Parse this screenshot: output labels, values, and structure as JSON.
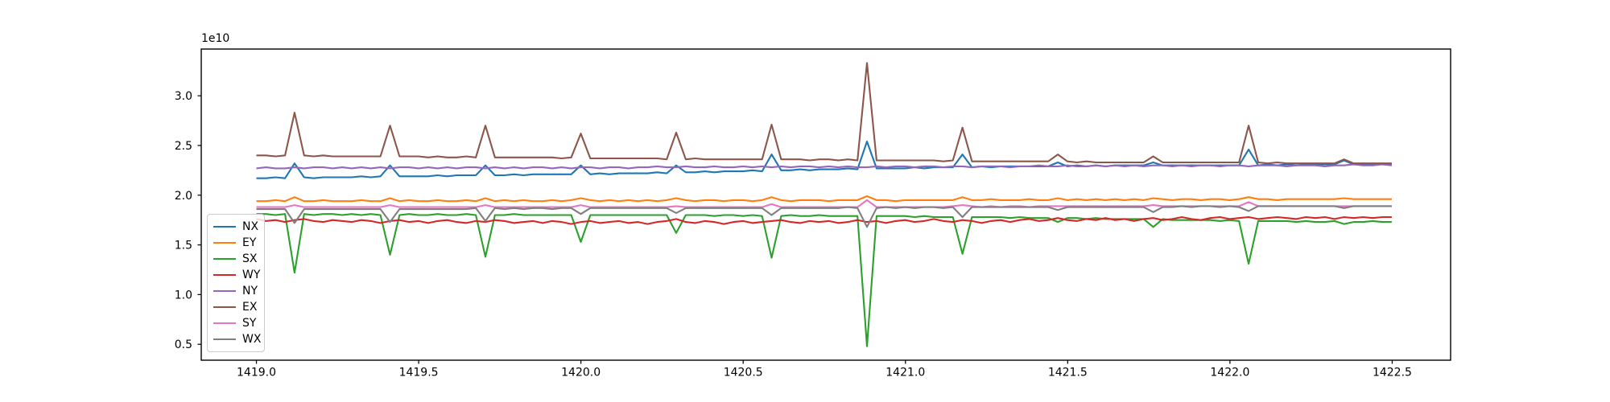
{
  "chart_data": {
    "type": "line",
    "title": "",
    "xlabel": "",
    "ylabel": "",
    "offset_text": "1e10",
    "grid": false,
    "legend_position": "lower left inside axes",
    "xlim": [
      1418.83,
      1422.68
    ],
    "ylim": [
      0.34,
      3.47
    ],
    "xticks": {
      "values": [
        1419.0,
        1419.5,
        1420.0,
        1420.5,
        1421.0,
        1421.5,
        1422.0,
        1422.5
      ],
      "labels": [
        "1419.0",
        "1419.5",
        "1420.0",
        "1420.5",
        "1421.0",
        "1421.5",
        "1422.0",
        "1422.5"
      ]
    },
    "yticks": {
      "values": [
        0.5,
        1.0,
        1.5,
        2.0,
        2.5,
        3.0
      ],
      "labels": [
        "0.5",
        "1.0",
        "1.5",
        "2.0",
        "2.5",
        "3.0"
      ]
    },
    "x_start": 1419.0,
    "x_step": 0.0294,
    "y_unit": "1e10",
    "series": [
      {
        "name": "NX",
        "color": "#1f77b4",
        "values": [
          2.17,
          2.17,
          2.18,
          2.17,
          2.32,
          2.18,
          2.17,
          2.18,
          2.18,
          2.18,
          2.18,
          2.19,
          2.18,
          2.19,
          2.3,
          2.19,
          2.19,
          2.19,
          2.19,
          2.2,
          2.19,
          2.2,
          2.2,
          2.2,
          2.3,
          2.2,
          2.2,
          2.21,
          2.2,
          2.21,
          2.21,
          2.21,
          2.21,
          2.21,
          2.3,
          2.21,
          2.22,
          2.21,
          2.22,
          2.22,
          2.22,
          2.22,
          2.23,
          2.22,
          2.3,
          2.23,
          2.23,
          2.24,
          2.23,
          2.24,
          2.24,
          2.24,
          2.25,
          2.24,
          2.41,
          2.25,
          2.25,
          2.26,
          2.25,
          2.26,
          2.26,
          2.26,
          2.27,
          2.26,
          2.54,
          2.27,
          2.27,
          2.27,
          2.27,
          2.28,
          2.27,
          2.28,
          2.28,
          2.28,
          2.41,
          2.28,
          2.29,
          2.28,
          2.29,
          2.29,
          2.29,
          2.29,
          2.29,
          2.29,
          2.33,
          2.29,
          2.3,
          2.29,
          2.3,
          2.29,
          2.3,
          2.3,
          2.3,
          2.3,
          2.33,
          2.3,
          2.3,
          2.3,
          2.3,
          2.3,
          2.3,
          2.3,
          2.3,
          2.3,
          2.46,
          2.3,
          2.31,
          2.3,
          2.31,
          2.3,
          2.31,
          2.31,
          2.31,
          2.31,
          2.35,
          2.31,
          2.31,
          2.31,
          2.31,
          2.31
        ]
      },
      {
        "name": "EY",
        "color": "#ff7f0e",
        "values": [
          1.94,
          1.94,
          1.95,
          1.94,
          1.98,
          1.94,
          1.94,
          1.95,
          1.94,
          1.94,
          1.94,
          1.95,
          1.94,
          1.94,
          1.97,
          1.94,
          1.95,
          1.94,
          1.94,
          1.95,
          1.94,
          1.94,
          1.95,
          1.94,
          1.97,
          1.94,
          1.95,
          1.94,
          1.95,
          1.94,
          1.94,
          1.95,
          1.94,
          1.95,
          1.97,
          1.95,
          1.94,
          1.95,
          1.94,
          1.95,
          1.94,
          1.95,
          1.94,
          1.95,
          1.97,
          1.95,
          1.94,
          1.95,
          1.95,
          1.94,
          1.95,
          1.95,
          1.94,
          1.95,
          1.98,
          1.95,
          1.94,
          1.95,
          1.95,
          1.95,
          1.94,
          1.95,
          1.95,
          1.95,
          1.99,
          1.95,
          1.95,
          1.94,
          1.95,
          1.95,
          1.95,
          1.95,
          1.95,
          1.95,
          1.98,
          1.95,
          1.95,
          1.96,
          1.95,
          1.95,
          1.95,
          1.96,
          1.95,
          1.95,
          1.97,
          1.95,
          1.96,
          1.95,
          1.96,
          1.95,
          1.96,
          1.95,
          1.96,
          1.95,
          1.97,
          1.96,
          1.95,
          1.96,
          1.96,
          1.95,
          1.96,
          1.96,
          1.95,
          1.96,
          1.98,
          1.96,
          1.96,
          1.95,
          1.96,
          1.96,
          1.96,
          1.96,
          1.96,
          1.96,
          1.97,
          1.96,
          1.96,
          1.96,
          1.96,
          1.96
        ]
      },
      {
        "name": "SX",
        "color": "#2ca02c",
        "values": [
          1.81,
          1.81,
          1.8,
          1.81,
          1.22,
          1.81,
          1.8,
          1.81,
          1.81,
          1.8,
          1.81,
          1.8,
          1.81,
          1.8,
          1.4,
          1.8,
          1.81,
          1.8,
          1.8,
          1.81,
          1.8,
          1.8,
          1.81,
          1.8,
          1.38,
          1.8,
          1.8,
          1.81,
          1.8,
          1.8,
          1.8,
          1.8,
          1.8,
          1.8,
          1.53,
          1.8,
          1.8,
          1.8,
          1.8,
          1.8,
          1.8,
          1.8,
          1.8,
          1.8,
          1.62,
          1.8,
          1.8,
          1.8,
          1.79,
          1.8,
          1.8,
          1.79,
          1.8,
          1.79,
          1.37,
          1.79,
          1.8,
          1.79,
          1.79,
          1.8,
          1.79,
          1.79,
          1.79,
          1.79,
          0.48,
          1.79,
          1.79,
          1.79,
          1.79,
          1.78,
          1.79,
          1.78,
          1.78,
          1.78,
          1.41,
          1.78,
          1.78,
          1.78,
          1.78,
          1.77,
          1.78,
          1.77,
          1.77,
          1.77,
          1.73,
          1.77,
          1.77,
          1.76,
          1.77,
          1.76,
          1.76,
          1.76,
          1.76,
          1.76,
          1.68,
          1.76,
          1.75,
          1.75,
          1.75,
          1.75,
          1.75,
          1.74,
          1.75,
          1.74,
          1.31,
          1.74,
          1.74,
          1.74,
          1.74,
          1.73,
          1.74,
          1.73,
          1.73,
          1.74,
          1.71,
          1.73,
          1.73,
          1.74,
          1.73,
          1.73
        ]
      },
      {
        "name": "WY",
        "color": "#d62728",
        "values": [
          1.76,
          1.74,
          1.75,
          1.73,
          1.75,
          1.76,
          1.74,
          1.73,
          1.75,
          1.74,
          1.73,
          1.75,
          1.74,
          1.72,
          1.74,
          1.75,
          1.73,
          1.74,
          1.72,
          1.74,
          1.75,
          1.73,
          1.72,
          1.74,
          1.73,
          1.75,
          1.74,
          1.72,
          1.73,
          1.74,
          1.72,
          1.74,
          1.73,
          1.71,
          1.73,
          1.74,
          1.72,
          1.73,
          1.74,
          1.72,
          1.73,
          1.71,
          1.73,
          1.74,
          1.76,
          1.73,
          1.72,
          1.74,
          1.73,
          1.71,
          1.73,
          1.74,
          1.72,
          1.73,
          1.74,
          1.75,
          1.73,
          1.72,
          1.74,
          1.73,
          1.74,
          1.72,
          1.73,
          1.75,
          1.73,
          1.74,
          1.72,
          1.74,
          1.75,
          1.73,
          1.74,
          1.76,
          1.74,
          1.73,
          1.75,
          1.74,
          1.72,
          1.74,
          1.75,
          1.73,
          1.75,
          1.76,
          1.74,
          1.75,
          1.77,
          1.75,
          1.74,
          1.76,
          1.75,
          1.77,
          1.75,
          1.76,
          1.74,
          1.76,
          1.77,
          1.75,
          1.76,
          1.78,
          1.76,
          1.75,
          1.77,
          1.78,
          1.76,
          1.77,
          1.78,
          1.76,
          1.77,
          1.78,
          1.77,
          1.76,
          1.78,
          1.77,
          1.78,
          1.76,
          1.78,
          1.77,
          1.78,
          1.77,
          1.78,
          1.78
        ]
      },
      {
        "name": "NY",
        "color": "#9467bd",
        "values": [
          2.27,
          2.28,
          2.27,
          2.27,
          2.28,
          2.27,
          2.28,
          2.28,
          2.27,
          2.28,
          2.27,
          2.28,
          2.27,
          2.28,
          2.27,
          2.28,
          2.28,
          2.27,
          2.28,
          2.27,
          2.28,
          2.27,
          2.28,
          2.28,
          2.27,
          2.28,
          2.27,
          2.28,
          2.27,
          2.28,
          2.28,
          2.27,
          2.28,
          2.27,
          2.28,
          2.28,
          2.27,
          2.28,
          2.28,
          2.27,
          2.28,
          2.28,
          2.29,
          2.28,
          2.28,
          2.29,
          2.28,
          2.28,
          2.29,
          2.28,
          2.28,
          2.29,
          2.28,
          2.29,
          2.28,
          2.29,
          2.28,
          2.29,
          2.29,
          2.28,
          2.29,
          2.28,
          2.29,
          2.28,
          2.28,
          2.29,
          2.28,
          2.29,
          2.29,
          2.28,
          2.29,
          2.29,
          2.28,
          2.29,
          2.29,
          2.28,
          2.29,
          2.29,
          2.29,
          2.28,
          2.29,
          2.29,
          2.3,
          2.29,
          2.29,
          2.3,
          2.29,
          2.29,
          2.3,
          2.29,
          2.3,
          2.29,
          2.3,
          2.29,
          2.3,
          2.3,
          2.29,
          2.3,
          2.29,
          2.3,
          2.3,
          2.29,
          2.3,
          2.3,
          2.29,
          2.3,
          2.3,
          2.3,
          2.29,
          2.3,
          2.3,
          2.3,
          2.29,
          2.3,
          2.3,
          2.31,
          2.3,
          2.3,
          2.31,
          2.3
        ]
      },
      {
        "name": "EX",
        "color": "#8c564b",
        "values": [
          2.4,
          2.4,
          2.39,
          2.4,
          2.83,
          2.4,
          2.39,
          2.4,
          2.39,
          2.39,
          2.39,
          2.39,
          2.39,
          2.39,
          2.7,
          2.39,
          2.39,
          2.39,
          2.38,
          2.39,
          2.38,
          2.38,
          2.39,
          2.38,
          2.7,
          2.38,
          2.38,
          2.38,
          2.38,
          2.38,
          2.38,
          2.38,
          2.37,
          2.38,
          2.62,
          2.37,
          2.37,
          2.37,
          2.37,
          2.37,
          2.37,
          2.37,
          2.37,
          2.36,
          2.63,
          2.36,
          2.37,
          2.36,
          2.36,
          2.36,
          2.36,
          2.36,
          2.36,
          2.36,
          2.71,
          2.36,
          2.36,
          2.36,
          2.35,
          2.36,
          2.36,
          2.35,
          2.36,
          2.35,
          3.33,
          2.35,
          2.35,
          2.35,
          2.35,
          2.35,
          2.35,
          2.35,
          2.34,
          2.35,
          2.68,
          2.34,
          2.34,
          2.34,
          2.34,
          2.34,
          2.34,
          2.34,
          2.34,
          2.34,
          2.41,
          2.34,
          2.33,
          2.34,
          2.33,
          2.33,
          2.33,
          2.33,
          2.33,
          2.33,
          2.39,
          2.33,
          2.33,
          2.33,
          2.33,
          2.33,
          2.33,
          2.33,
          2.33,
          2.33,
          2.7,
          2.33,
          2.32,
          2.33,
          2.32,
          2.32,
          2.32,
          2.32,
          2.32,
          2.32,
          2.36,
          2.32,
          2.32,
          2.32,
          2.32,
          2.32
        ]
      },
      {
        "name": "SY",
        "color": "#e377c2",
        "values": [
          1.88,
          1.88,
          1.88,
          1.88,
          1.9,
          1.88,
          1.88,
          1.88,
          1.88,
          1.88,
          1.88,
          1.88,
          1.88,
          1.88,
          1.9,
          1.88,
          1.88,
          1.88,
          1.88,
          1.88,
          1.88,
          1.88,
          1.88,
          1.88,
          1.9,
          1.88,
          1.88,
          1.88,
          1.88,
          1.88,
          1.88,
          1.88,
          1.88,
          1.88,
          1.9,
          1.88,
          1.88,
          1.88,
          1.88,
          1.88,
          1.88,
          1.88,
          1.88,
          1.88,
          1.89,
          1.88,
          1.88,
          1.88,
          1.88,
          1.88,
          1.88,
          1.88,
          1.88,
          1.88,
          1.91,
          1.88,
          1.88,
          1.88,
          1.88,
          1.88,
          1.88,
          1.88,
          1.88,
          1.88,
          1.95,
          1.88,
          1.88,
          1.88,
          1.88,
          1.88,
          1.88,
          1.88,
          1.88,
          1.89,
          1.9,
          1.89,
          1.88,
          1.89,
          1.88,
          1.89,
          1.89,
          1.88,
          1.89,
          1.89,
          1.89,
          1.89,
          1.89,
          1.89,
          1.89,
          1.89,
          1.89,
          1.89,
          1.89,
          1.89,
          1.9,
          1.89,
          1.89,
          1.89,
          1.89,
          1.89,
          1.89,
          1.89,
          1.89,
          1.89,
          1.93,
          1.89,
          1.89,
          1.89,
          1.89,
          1.89,
          1.89,
          1.89,
          1.89,
          1.89,
          1.89,
          1.89,
          1.89,
          1.89,
          1.89,
          1.89
        ]
      },
      {
        "name": "WX",
        "color": "#7f7f7f",
        "values": [
          1.86,
          1.86,
          1.86,
          1.86,
          1.72,
          1.86,
          1.86,
          1.86,
          1.86,
          1.86,
          1.86,
          1.86,
          1.86,
          1.86,
          1.73,
          1.86,
          1.86,
          1.86,
          1.86,
          1.86,
          1.86,
          1.86,
          1.86,
          1.87,
          1.74,
          1.87,
          1.86,
          1.87,
          1.86,
          1.87,
          1.87,
          1.86,
          1.87,
          1.87,
          1.81,
          1.87,
          1.87,
          1.87,
          1.87,
          1.87,
          1.87,
          1.87,
          1.87,
          1.87,
          1.82,
          1.87,
          1.87,
          1.87,
          1.87,
          1.87,
          1.87,
          1.87,
          1.87,
          1.87,
          1.8,
          1.87,
          1.87,
          1.87,
          1.87,
          1.87,
          1.87,
          1.87,
          1.88,
          1.87,
          1.68,
          1.87,
          1.88,
          1.87,
          1.88,
          1.87,
          1.88,
          1.88,
          1.87,
          1.88,
          1.78,
          1.88,
          1.88,
          1.88,
          1.88,
          1.88,
          1.88,
          1.88,
          1.88,
          1.88,
          1.85,
          1.88,
          1.88,
          1.88,
          1.88,
          1.88,
          1.88,
          1.88,
          1.88,
          1.88,
          1.83,
          1.88,
          1.88,
          1.89,
          1.88,
          1.89,
          1.89,
          1.88,
          1.89,
          1.88,
          1.84,
          1.89,
          1.89,
          1.89,
          1.89,
          1.89,
          1.89,
          1.89,
          1.89,
          1.89,
          1.87,
          1.89,
          1.89,
          1.89,
          1.89,
          1.89
        ]
      }
    ]
  }
}
